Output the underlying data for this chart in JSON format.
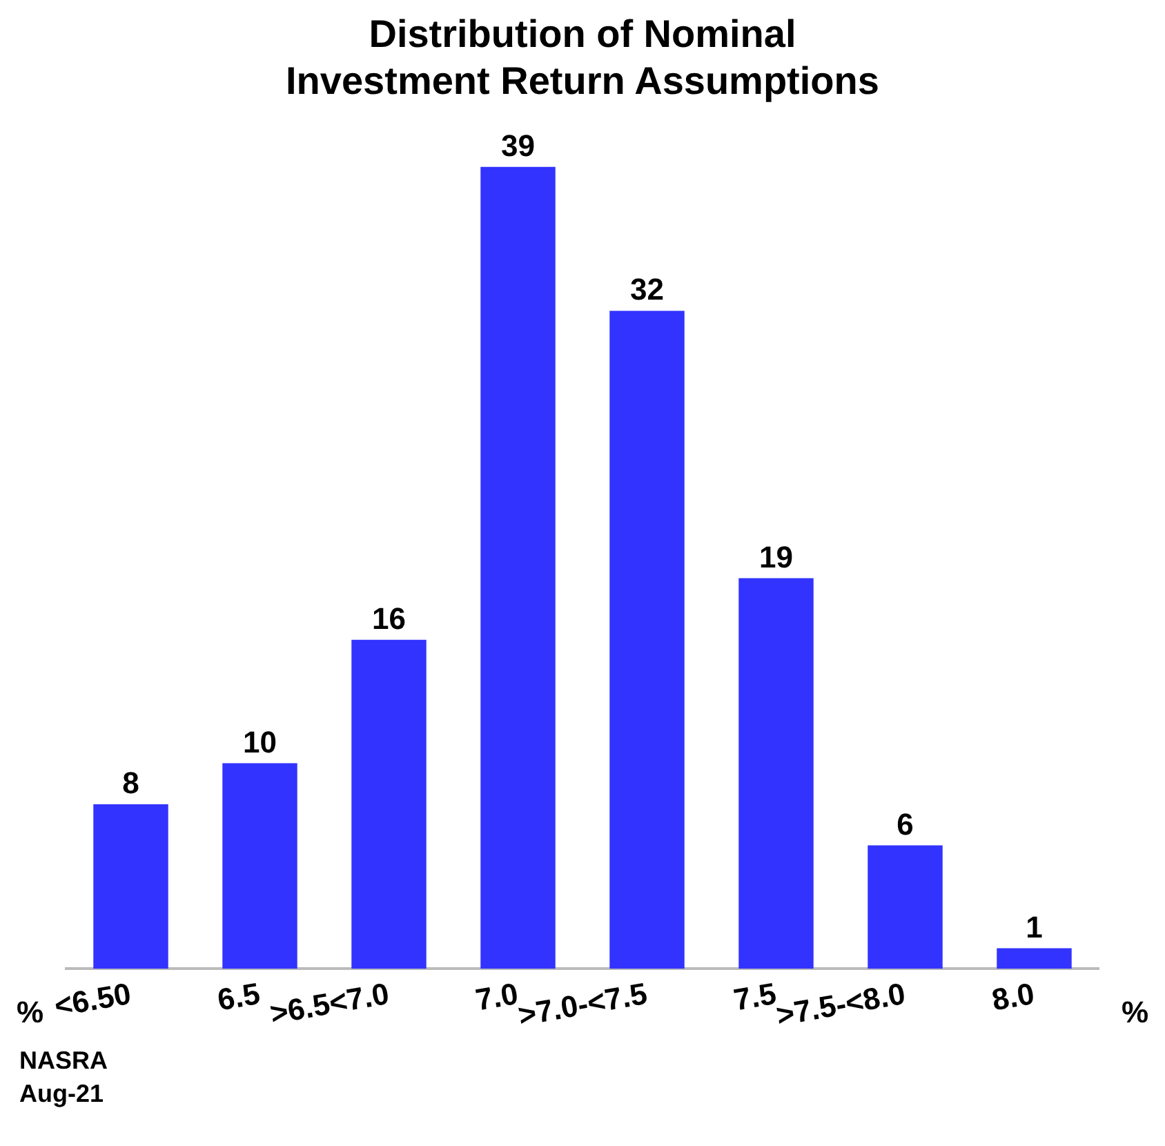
{
  "chart_data": {
    "type": "bar",
    "title": "Distribution of Nominal Investment Return Assumptions",
    "categories": [
      "<6.50",
      "6.5",
      ">6.5<7.0",
      "7.0",
      ">7.0-<7.5",
      "7.5",
      ">7.5-<8.0",
      "8.0"
    ],
    "values": [
      8,
      10,
      16,
      39,
      32,
      19,
      6,
      1
    ],
    "color": "#3333ff",
    "data_labels": true,
    "grid": false,
    "legend": false,
    "annotations": [
      "%",
      "%",
      "NASRA",
      "Aug-21"
    ]
  }
}
